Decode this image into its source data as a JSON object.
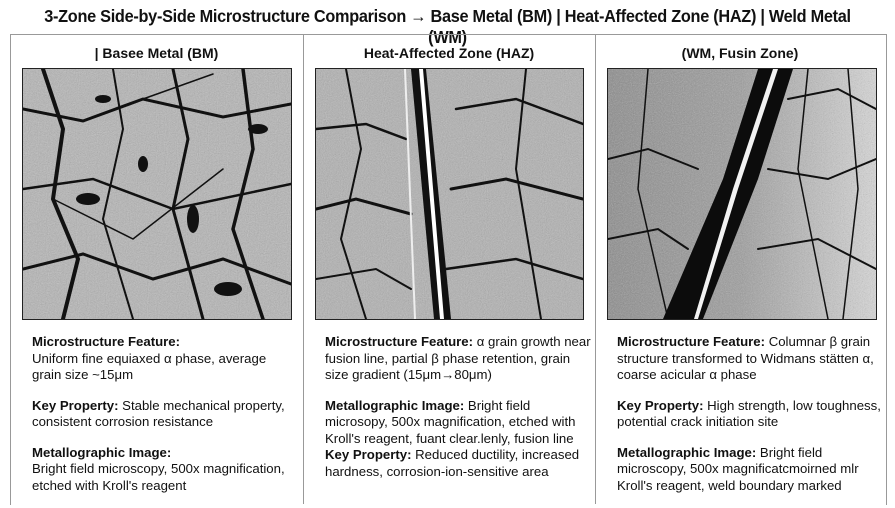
{
  "title": "3-Zone Side-by-Side Microstructure Comparison → Base Metal (BM) | Heat-Affected Zone (HAZ) | Weld Metal (WM)",
  "panels": [
    {
      "header": "| Basee Metal (BM)",
      "image": "base-metal-micrograph",
      "sections": [
        {
          "label": "Microstructure Feature:",
          "text": "Uniform fine equiaxed α phase, average grain size ~15μm"
        },
        {
          "label": "Key Property:",
          "text": "Stable mechanical property, consistent corrosion resistance"
        },
        {
          "label": "Metallographic Image:",
          "text": "Bright field microscopy, 500x magnification, etched with Kroll's reagent"
        }
      ]
    },
    {
      "header": "Heat-Affected Zone (HAZ)",
      "image": "haz-micrograph",
      "sections": [
        {
          "label": "Microstructure Feature:",
          "text": "α grain growth near fusion line, partial β phase retention, grain size gradient (15μm→80μm)"
        },
        {
          "label": "Metallographic Image:",
          "text": "Bright field microsopy, 500x magnification, etched with Kroll's reagent, fuant clear.lenly, fusion line"
        },
        {
          "label": "Key Property:",
          "text": "Reduced ductility, increased hardness, corrosion-ion-sensitive area"
        }
      ]
    },
    {
      "header": "(WM, Fusin Zone)",
      "image": "weld-metal-micrograph",
      "sections": [
        {
          "label": "Microstructure Feature:",
          "text": "Columnar β grain structure transformed to Widmans stätten α, coarse acicular α phase"
        },
        {
          "label": "Key Property:",
          "text": "High strength, low toughness, potential crack initiation site"
        },
        {
          "label": "Metallographic Image:",
          "text": "Bright field microscopy, 500x magnificatcmoirned mlr Kroll's reagent, weld boundary marked"
        }
      ]
    }
  ]
}
